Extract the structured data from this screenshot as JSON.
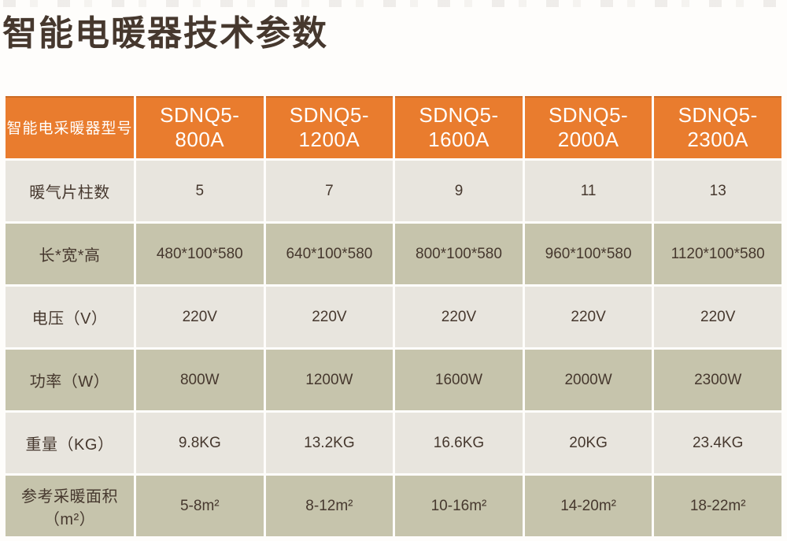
{
  "page": {
    "title": "智能电暖器技术参数"
  },
  "table": {
    "header": {
      "label": "智能电采暖器型号",
      "models": [
        "SDNQ5-800A",
        "SDNQ5-1200A",
        "SDNQ5-1600A",
        "SDNQ5-2000A",
        "SDNQ5-2300A"
      ]
    },
    "rows": [
      {
        "label": "暖气片柱数",
        "values": [
          "5",
          "7",
          "9",
          "11",
          "13"
        ]
      },
      {
        "label": "长*宽*高",
        "values": [
          "480*100*580",
          "640*100*580",
          "800*100*580",
          "960*100*580",
          "1120*100*580"
        ]
      },
      {
        "label": "电压（V）",
        "values": [
          "220V",
          "220V",
          "220V",
          "220V",
          "220V"
        ]
      },
      {
        "label": "功率（W）",
        "values": [
          "800W",
          "1200W",
          "1600W",
          "2000W",
          "2300W"
        ]
      },
      {
        "label": "重量（KG）",
        "values": [
          "9.8KG",
          "13.2KG",
          "16.6KG",
          "20KG",
          "23.4KG"
        ]
      },
      {
        "label": "参考采暖面积（m²）",
        "values": [
          "5-8m²",
          "8-12m²",
          "10-16m²",
          "14-20m²",
          "18-22m²"
        ]
      }
    ]
  },
  "colors": {
    "header_bg": "#E97C2E",
    "header_text": "#FFFFFF",
    "row_light": "#E8E5DE",
    "row_sage": "#C6C4AC",
    "text_dark": "#46382E"
  }
}
